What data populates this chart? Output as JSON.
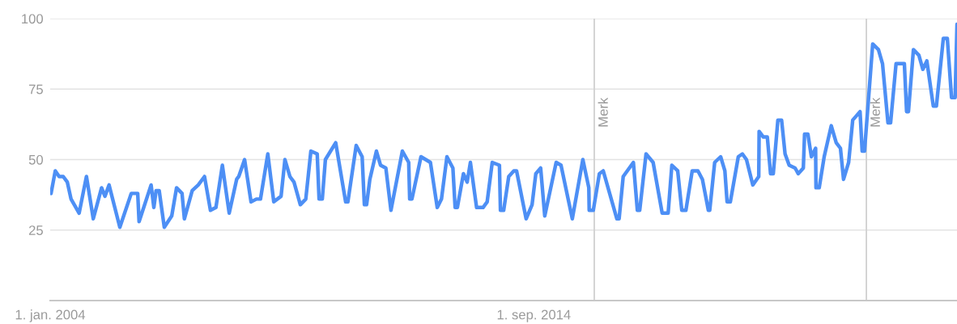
{
  "chart_data": {
    "type": "line",
    "xlim": [
      "2004-01-01",
      "2024-01-01"
    ],
    "ylim": [
      0,
      100
    ],
    "xticks": [
      {
        "value": "2004-01-01",
        "label": "1. jan. 2004"
      },
      {
        "value": "2014-09-01",
        "label": "1. sep. 2014"
      }
    ],
    "yticks": [
      {
        "value": 0,
        "label": null
      },
      25,
      50,
      75,
      100
    ],
    "grid": "y",
    "legend": false,
    "marker": "none",
    "line_style": "solid",
    "ref_lines": [
      {
        "axis": "x",
        "value": "2016-01-01",
        "label": "Merk",
        "color": "#d0d0d0"
      },
      {
        "axis": "x",
        "value": "2022-01-01",
        "label": "Merk",
        "color": "#d0d0d0"
      }
    ],
    "series": [
      {
        "color": "#4d8ff5",
        "x": [
          "2004-01-08",
          "2004-02-11",
          "2004-03-13",
          "2004-04-15",
          "2004-05-18",
          "2004-06-17",
          "2004-08-21",
          "2004-10-19",
          "2004-12-13",
          "2005-02-18",
          "2005-03-17",
          "2005-04-19",
          "2005-07-15",
          "2005-10-15",
          "2005-12-06",
          "2005-12-17",
          "2006-03-24",
          "2006-04-15",
          "2006-05-03",
          "2006-05-28",
          "2006-07-08",
          "2006-09-06",
          "2006-10-15",
          "2006-11-28",
          "2006-12-17",
          "2007-02-18",
          "2007-04-08",
          "2007-05-28",
          "2007-07-15",
          "2007-08-28",
          "2007-10-19",
          "2007-12-13",
          "2008-02-11",
          "2008-02-28",
          "2008-04-15",
          "2008-06-06",
          "2008-07-19",
          "2008-08-21",
          "2008-10-19",
          "2008-12-06",
          "2009-02-03",
          "2009-03-06",
          "2009-04-15",
          "2009-05-18",
          "2009-07-08",
          "2009-08-21",
          "2009-10-01",
          "2009-11-21",
          "2009-12-06",
          "2010-01-01",
          "2010-01-26",
          "2010-04-19",
          "2010-07-08",
          "2010-07-26",
          "2010-10-01",
          "2010-11-18",
          "2010-12-06",
          "2010-12-24",
          "2011-01-19",
          "2011-03-13",
          "2011-04-15",
          "2011-05-28",
          "2011-07-08",
          "2011-10-08",
          "2011-11-28",
          "2011-12-06",
          "2011-12-24",
          "2012-03-06",
          "2012-05-21",
          "2012-07-15",
          "2012-08-18",
          "2012-10-01",
          "2012-11-18",
          "2012-12-06",
          "2012-12-24",
          "2013-02-11",
          "2013-03-13",
          "2013-04-08",
          "2013-05-28",
          "2013-07-19",
          "2013-08-21",
          "2013-10-01",
          "2013-11-28",
          "2013-12-06",
          "2014-01-01",
          "2014-02-11",
          "2014-03-24",
          "2014-04-15",
          "2014-07-01",
          "2014-08-18",
          "2014-09-17",
          "2014-10-26",
          "2014-11-28",
          "2015-02-28",
          "2015-04-08",
          "2015-07-08",
          "2015-10-01",
          "2015-11-18",
          "2015-11-21",
          "2015-12-24",
          "2016-02-11",
          "2016-03-13",
          "2016-07-01",
          "2016-07-19",
          "2016-08-21",
          "2016-11-11",
          "2016-12-13",
          "2017-01-01",
          "2017-02-21",
          "2017-04-19",
          "2017-07-01",
          "2017-08-18",
          "2017-09-17",
          "2017-11-03",
          "2017-12-06",
          "2018-01-08",
          "2018-02-28",
          "2018-04-15",
          "2018-05-21",
          "2018-07-08",
          "2018-07-19",
          "2018-08-28",
          "2018-10-15",
          "2018-11-18",
          "2018-12-06",
          "2019-01-01",
          "2019-03-06",
          "2019-04-08",
          "2019-05-11",
          "2019-07-01",
          "2019-08-18",
          "2019-08-21",
          "2019-09-24",
          "2019-10-26",
          "2019-11-21",
          "2019-12-13",
          "2020-01-19",
          "2020-02-18",
          "2020-03-17",
          "2020-04-19",
          "2020-06-06",
          "2020-07-01",
          "2020-08-11",
          "2020-08-21",
          "2020-09-17",
          "2020-10-15",
          "2020-11-18",
          "2020-11-21",
          "2020-12-17",
          "2021-01-26",
          "2021-03-24",
          "2021-05-03",
          "2021-06-06",
          "2021-07-01",
          "2021-08-11",
          "2021-09-13",
          "2021-11-11",
          "2021-11-28",
          "2021-12-17",
          "2022-02-21",
          "2022-04-08",
          "2022-05-11",
          "2022-06-24",
          "2022-07-15",
          "2022-08-28",
          "2022-11-03",
          "2022-11-21",
          "2022-12-06",
          "2023-01-15",
          "2023-02-28",
          "2023-04-01",
          "2023-05-03",
          "2023-06-24",
          "2023-07-19",
          "2023-09-13",
          "2023-10-15",
          "2023-11-18",
          "2023-12-17",
          "2024-01-01"
        ],
        "values": [
          38,
          46,
          44,
          44,
          42,
          36,
          31,
          44,
          29,
          40,
          37,
          41,
          26,
          38,
          38,
          28,
          41,
          33,
          39,
          39,
          26,
          30,
          40,
          38,
          29,
          39,
          41,
          44,
          32,
          33,
          48,
          31,
          43,
          44,
          50,
          35,
          36,
          36,
          52,
          35,
          37,
          50,
          44,
          42,
          34,
          36,
          53,
          52,
          36,
          36,
          50,
          56,
          35,
          35,
          55,
          51,
          34,
          34,
          43,
          53,
          48,
          47,
          32,
          53,
          49,
          36,
          36,
          51,
          49,
          33,
          36,
          51,
          47,
          33,
          33,
          45,
          42,
          49,
          33,
          33,
          35,
          49,
          48,
          32,
          32,
          44,
          46,
          46,
          29,
          34,
          45,
          47,
          30,
          49,
          48,
          29,
          50,
          40,
          32,
          32,
          45,
          46,
          29,
          29,
          44,
          49,
          32,
          32,
          52,
          49,
          31,
          31,
          48,
          46,
          32,
          32,
          46,
          46,
          43,
          32,
          32,
          49,
          51,
          46,
          35,
          35,
          51,
          52,
          50,
          41,
          44,
          60,
          58,
          58,
          45,
          45,
          64,
          64,
          52,
          48,
          47,
          45,
          47,
          59,
          59,
          51,
          54,
          40,
          40,
          51,
          62,
          56,
          54,
          43,
          49,
          64,
          67,
          53,
          53,
          91,
          89,
          84,
          63,
          63,
          84,
          84,
          67,
          67,
          89,
          87,
          82,
          85,
          69,
          69,
          93,
          93,
          72,
          72,
          98
        ]
      }
    ]
  }
}
